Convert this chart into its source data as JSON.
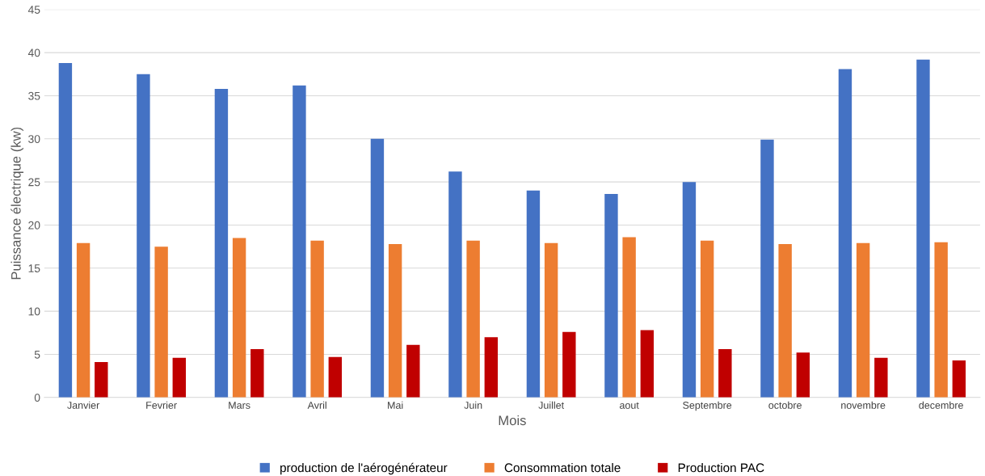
{
  "chart_data": {
    "type": "bar",
    "xlabel": "Mois",
    "ylabel": "Puissance électrique (kw)",
    "categories": [
      "Janvier",
      "Fevrier",
      "Mars",
      "Avril",
      "Mai",
      "Juin",
      "Juillet",
      "aout",
      "Septembre",
      "octobre",
      "novembre",
      "decembre"
    ],
    "series": [
      {
        "name": "production de l'aérogénérateur",
        "color": "#4472c4",
        "values": [
          38.8,
          37.5,
          35.8,
          36.2,
          30.0,
          26.2,
          24.0,
          23.6,
          25.0,
          29.9,
          38.1,
          39.2
        ]
      },
      {
        "name": "Consommation totale",
        "color": "#ed7d31",
        "values": [
          17.9,
          17.5,
          18.5,
          18.2,
          17.8,
          18.2,
          17.9,
          18.6,
          18.2,
          17.8,
          17.9,
          18.0
        ]
      },
      {
        "name": "Production PAC",
        "color": "#c00000",
        "values": [
          4.1,
          4.6,
          5.6,
          4.7,
          6.1,
          7.0,
          7.6,
          7.8,
          5.6,
          5.2,
          4.6,
          4.3
        ]
      }
    ],
    "ylim": [
      0,
      45
    ],
    "yticks": [
      0,
      5,
      10,
      15,
      20,
      25,
      30,
      35,
      40,
      45
    ],
    "grid": "y",
    "legend": "bottom"
  }
}
